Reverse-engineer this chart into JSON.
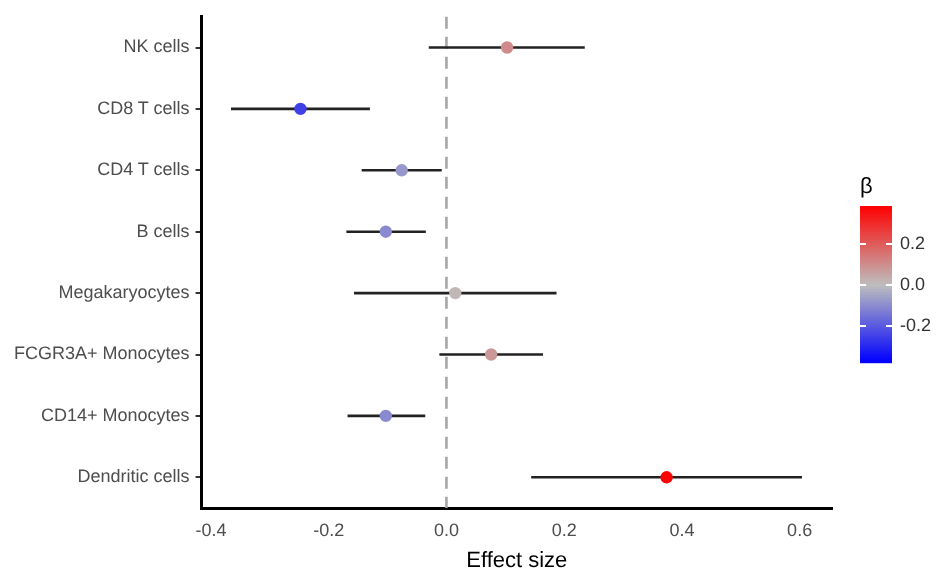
{
  "chart_data": {
    "type": "scatter",
    "orientation": "horizontal",
    "xlabel": "Effect size",
    "clabel": "β",
    "categories": [
      "NK cells",
      "CD8 T cells",
      "CD4 T cells",
      "B cells",
      "Megakaryocytes",
      "FCGR3A+ Monocytes",
      "CD14+ Monocytes",
      "Dendritic cells"
    ],
    "values": [
      0.103,
      -0.248,
      -0.076,
      -0.103,
      0.015,
      0.076,
      -0.103,
      0.374
    ],
    "cvalues": [
      0.103,
      -0.248,
      -0.076,
      -0.103,
      0.015,
      0.076,
      -0.103,
      0.374
    ],
    "errors": [
      [
        -0.03,
        0.235
      ],
      [
        -0.366,
        -0.13
      ],
      [
        -0.144,
        -0.008
      ],
      [
        -0.17,
        -0.035
      ],
      [
        -0.157,
        0.187
      ],
      [
        -0.012,
        0.164
      ],
      [
        -0.168,
        -0.036
      ],
      [
        0.144,
        0.604
      ]
    ],
    "xlim": [
      -0.416,
      0.655
    ],
    "xticks": [
      {
        "value": -0.4,
        "label": "-0.4"
      },
      {
        "value": -0.2,
        "label": "-0.2"
      },
      {
        "value": 0,
        "label": "0.0"
      },
      {
        "value": 0.2,
        "label": "0.2"
      },
      {
        "value": 0.4,
        "label": "0.4"
      },
      {
        "value": 0.6,
        "label": "0.6"
      }
    ],
    "clim": [
      -0.375,
      0.385
    ],
    "cticks": [
      {
        "value": -0.2,
        "label": "-0.2"
      },
      {
        "value": 0,
        "label": "0.0"
      },
      {
        "value": 0.2,
        "label": "0.2"
      }
    ],
    "ref_lines": [
      {
        "axis": "x",
        "value": 0,
        "color": "#a6a6a6",
        "line_style": "dashed"
      }
    ],
    "grid": false,
    "legend": false,
    "marker": "circle"
  }
}
